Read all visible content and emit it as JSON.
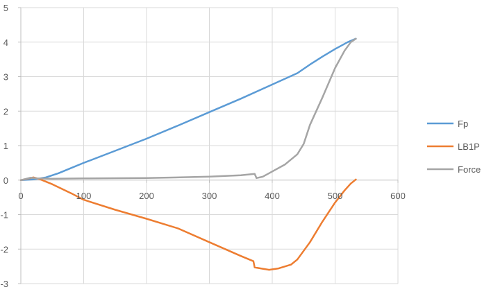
{
  "chart_data": {
    "type": "line",
    "title": "",
    "xlabel": "",
    "ylabel": "",
    "xlim": [
      0,
      600
    ],
    "ylim": [
      -3,
      5
    ],
    "xticks": [
      0,
      100,
      200,
      300,
      400,
      500,
      600
    ],
    "yticks": [
      5,
      4,
      3,
      2,
      1,
      0,
      -1,
      -2,
      -3
    ],
    "x_tick_labels": [
      "0",
      "100",
      "200",
      "300",
      "400",
      "500",
      "600"
    ],
    "y_tick_labels": [
      "5",
      "4",
      "3",
      "2",
      "1",
      "0",
      "-1",
      "-2",
      "-3"
    ],
    "grid": true,
    "legend_position": "right",
    "series": [
      {
        "name": "Fp",
        "color": "#5B9BD5",
        "points": [
          [
            0,
            0
          ],
          [
            20,
            0.02
          ],
          [
            40,
            0.08
          ],
          [
            60,
            0.2
          ],
          [
            80,
            0.35
          ],
          [
            100,
            0.5
          ],
          [
            150,
            0.85
          ],
          [
            200,
            1.2
          ],
          [
            250,
            1.58
          ],
          [
            300,
            1.97
          ],
          [
            350,
            2.36
          ],
          [
            400,
            2.77
          ],
          [
            440,
            3.1
          ],
          [
            460,
            3.35
          ],
          [
            480,
            3.58
          ],
          [
            500,
            3.8
          ],
          [
            520,
            4.0
          ],
          [
            533,
            4.1
          ]
        ]
      },
      {
        "name": "LB1P",
        "color": "#ED7D31",
        "points": [
          [
            0,
            0
          ],
          [
            15,
            0.06
          ],
          [
            20,
            0.08
          ],
          [
            30,
            0.03
          ],
          [
            50,
            -0.12
          ],
          [
            80,
            -0.38
          ],
          [
            100,
            -0.57
          ],
          [
            150,
            -0.86
          ],
          [
            200,
            -1.12
          ],
          [
            250,
            -1.4
          ],
          [
            300,
            -1.8
          ],
          [
            350,
            -2.2
          ],
          [
            370,
            -2.35
          ],
          [
            372,
            -2.53
          ],
          [
            385,
            -2.57
          ],
          [
            395,
            -2.6
          ],
          [
            410,
            -2.56
          ],
          [
            430,
            -2.45
          ],
          [
            440,
            -2.3
          ],
          [
            460,
            -1.8
          ],
          [
            480,
            -1.2
          ],
          [
            500,
            -0.65
          ],
          [
            515,
            -0.3
          ],
          [
            525,
            -0.1
          ],
          [
            533,
            0.02
          ]
        ]
      },
      {
        "name": "Force",
        "color": "#A5A5A5",
        "points": [
          [
            0,
            0
          ],
          [
            15,
            0.07
          ],
          [
            25,
            0.05
          ],
          [
            50,
            0.04
          ],
          [
            100,
            0.05
          ],
          [
            200,
            0.06
          ],
          [
            300,
            0.1
          ],
          [
            350,
            0.14
          ],
          [
            372,
            0.18
          ],
          [
            375,
            0.06
          ],
          [
            385,
            0.1
          ],
          [
            400,
            0.25
          ],
          [
            420,
            0.45
          ],
          [
            440,
            0.75
          ],
          [
            450,
            1.05
          ],
          [
            460,
            1.6
          ],
          [
            480,
            2.4
          ],
          [
            500,
            3.25
          ],
          [
            515,
            3.75
          ],
          [
            525,
            4.0
          ],
          [
            533,
            4.1
          ]
        ]
      }
    ]
  }
}
